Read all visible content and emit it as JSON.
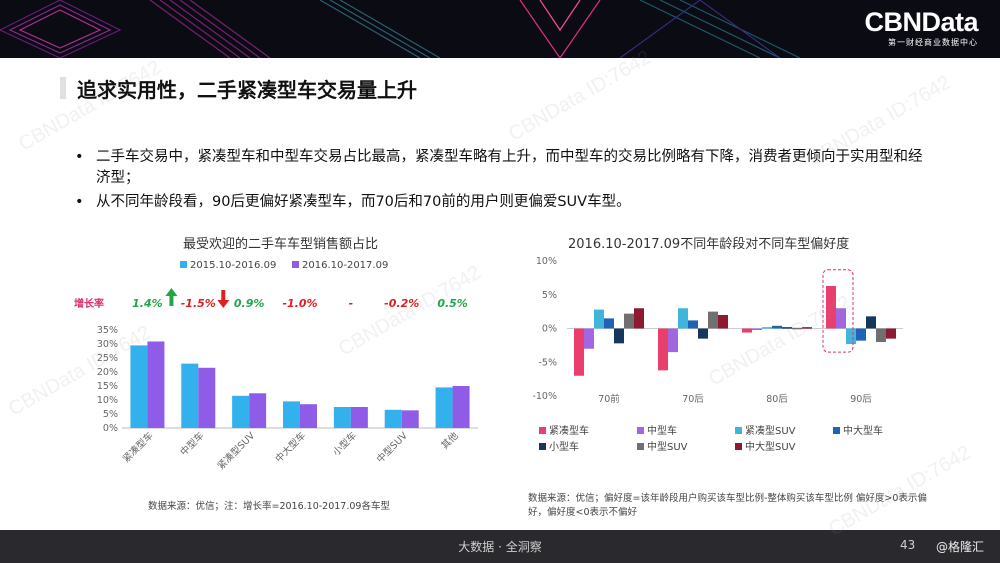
{
  "brand": {
    "name": "CBNData",
    "tagline": "第一财经商业数据中心"
  },
  "title": "追求实用性，二手紧凑型车交易量上升",
  "bullets": [
    "二手车交易中，紧凑型车和中型车交易占比最高，紧凑型车略有上升，而中型车的交易比例略有下降，消费者更倾向于实用型和经济型；",
    "从不同年龄段看，90后更偏好紧凑型车，而70后和70前的用户则更偏爱SUV车型。"
  ],
  "bullet_marker": "•",
  "watermark_text": "CBNData ID:7642",
  "footer": {
    "center": "大数据 · 全洞察",
    "page": "43",
    "credit": "@格隆汇"
  },
  "colors": {
    "series_2015": "#33b1ec",
    "series_2016": "#8f5ce8",
    "up_arrow": "#22a648",
    "down_arrow": "#e02020",
    "growth_label": "#e0306a"
  },
  "chart_data": [
    {
      "type": "bar",
      "title": "最受欢迎的二手车车型销售额占比",
      "categories": [
        "紧凑型车",
        "中型车",
        "紧凑型SUV",
        "中大型车",
        "小型车",
        "中型SUV",
        "其他"
      ],
      "series": [
        {
          "name": "2015.10-2016.09",
          "values": [
            29.5,
            23,
            11.5,
            9.5,
            7.5,
            6.5,
            14.5
          ],
          "color": "#33b1ec"
        },
        {
          "name": "2016.10-2017.09",
          "values": [
            30.9,
            21.5,
            12.4,
            8.5,
            7.5,
            6.3,
            15.0
          ],
          "color": "#8f5ce8"
        }
      ],
      "growth_label": "增长率",
      "growth": [
        "1.4%",
        "-1.5%",
        "0.9%",
        "-1.0%",
        "-",
        "-0.2%",
        "0.5%"
      ],
      "growth_colors": [
        "#22a648",
        "#e02020",
        "#22a648",
        "#e02020",
        "#e02020",
        "#e02020",
        "#22a648"
      ],
      "growth_arrows": [
        "up",
        "down",
        "none",
        "none",
        "none",
        "none",
        "none"
      ],
      "ylim": [
        0,
        35
      ],
      "yticks": [
        "0%",
        "5%",
        "10%",
        "15%",
        "20%",
        "25%",
        "30%",
        "35%"
      ],
      "legend_position": "top",
      "source": "数据来源：优信；注：增长率=2016.10-2017.09各车型"
    },
    {
      "type": "bar",
      "title": "2016.10-2017.09不同年龄段对不同车型偏好度",
      "categories": [
        "70前",
        "70后",
        "80后",
        "90后"
      ],
      "series": [
        {
          "name": "紧凑型车",
          "values": [
            -7,
            -6.2,
            -0.6,
            6.3
          ],
          "color": "#ea3f6c"
        },
        {
          "name": "中型车",
          "values": [
            -3,
            -3.5,
            0,
            3
          ],
          "color": "#a267e0"
        },
        {
          "name": "紧凑型SUV",
          "values": [
            2.8,
            3.0,
            0.2,
            -2.3
          ],
          "color": "#40b5dc"
        },
        {
          "name": "中大型车",
          "values": [
            1.5,
            1.2,
            0.4,
            -1.8
          ],
          "color": "#1e63b8"
        },
        {
          "name": "小型车",
          "values": [
            -2.2,
            -1.5,
            0.2,
            1.8
          ],
          "color": "#16365c"
        },
        {
          "name": "中型SUV",
          "values": [
            2.2,
            2.5,
            0.1,
            -2.0
          ],
          "color": "#707070"
        },
        {
          "name": "中大型SUV",
          "values": [
            3.0,
            2.0,
            0.2,
            -1.5
          ],
          "color": "#8c1a30"
        }
      ],
      "ylim": [
        -10,
        10
      ],
      "yticks": [
        "10%",
        "5%",
        "0%",
        "-5%",
        "-10%"
      ],
      "highlight_category": "90后",
      "legend_position": "bottom",
      "source": "数据来源：优信；偏好度=该年龄段用户购买该车型比例-整体购买该车型比例 偏好度>0表示偏好，偏好度<0表示不偏好"
    }
  ]
}
